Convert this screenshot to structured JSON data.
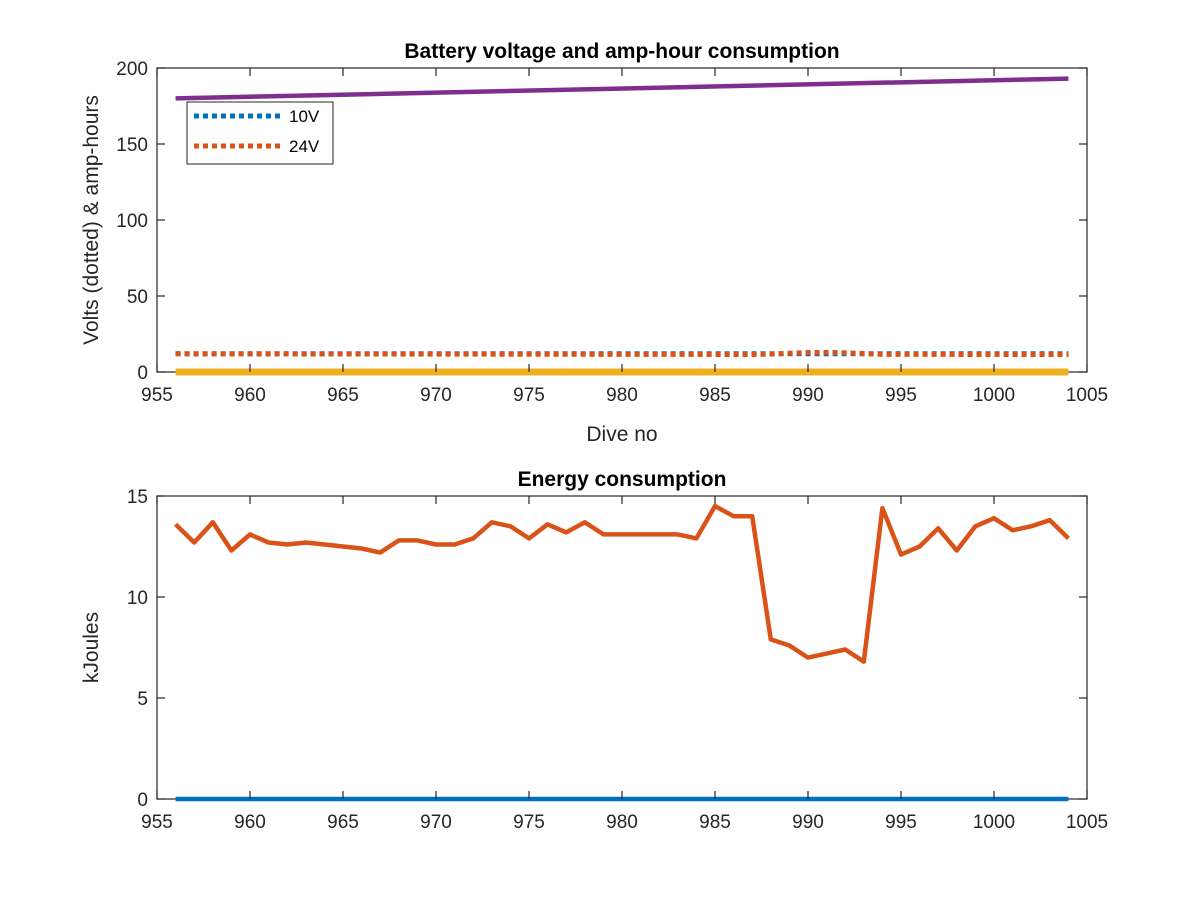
{
  "chart_data": [
    {
      "type": "line",
      "title": "Battery voltage and amp-hour consumption",
      "xlabel": "Dive no",
      "ylabel": "Volts (dotted) & amp-hours",
      "xlim": [
        955,
        1005
      ],
      "ylim": [
        0,
        200
      ],
      "xticks": [
        "955",
        "960",
        "965",
        "970",
        "975",
        "980",
        "985",
        "990",
        "995",
        "1000",
        "1005"
      ],
      "yticks": [
        "0",
        "50",
        "100",
        "150",
        "200"
      ],
      "grid": false,
      "legend": {
        "placement": "top-left",
        "entries": [
          "10V",
          "24V"
        ]
      },
      "series": [
        {
          "name": "10V",
          "style": "dotted",
          "color": "#0072BD",
          "x": [
            956,
            1004
          ],
          "y": [
            12,
            12
          ]
        },
        {
          "name": "24V",
          "style": "dotted",
          "color": "#D95319",
          "x": [
            956,
            987,
            988,
            989,
            990,
            991,
            992,
            993,
            994,
            1004
          ],
          "y": [
            12,
            11.5,
            11.8,
            12.3,
            12.8,
            12.9,
            12.6,
            12.2,
            11.6,
            11.5
          ]
        },
        {
          "style": "solid",
          "color": "#EDB120",
          "x": [
            956,
            1004
          ],
          "y": [
            0,
            0
          ]
        },
        {
          "style": "solid",
          "color": "#7E2F8E",
          "x": [
            956,
            1004
          ],
          "y": [
            180,
            193
          ]
        }
      ]
    },
    {
      "type": "line",
      "title": "Energy consumption",
      "xlabel": "",
      "ylabel": "kJoules",
      "xlim": [
        955,
        1005
      ],
      "ylim": [
        0,
        15
      ],
      "xticks": [
        "955",
        "960",
        "965",
        "970",
        "975",
        "980",
        "985",
        "990",
        "995",
        "1000",
        "1005"
      ],
      "yticks": [
        "0",
        "5",
        "10",
        "15"
      ],
      "grid": false,
      "series": [
        {
          "style": "solid",
          "color": "#0072BD",
          "x": [
            956,
            1004
          ],
          "y": [
            0,
            0
          ]
        },
        {
          "style": "solid",
          "color": "#D95319",
          "x": [
            956,
            957,
            958,
            959,
            960,
            961,
            962,
            963,
            964,
            965,
            966,
            967,
            968,
            969,
            970,
            971,
            972,
            973,
            974,
            975,
            976,
            977,
            978,
            979,
            980,
            981,
            982,
            983,
            984,
            985,
            986,
            987,
            988,
            989,
            990,
            991,
            992,
            993,
            994,
            995,
            996,
            997,
            998,
            999,
            1000,
            1001,
            1002,
            1003,
            1004
          ],
          "y": [
            13.6,
            12.7,
            13.7,
            12.3,
            13.1,
            12.7,
            12.6,
            12.7,
            12.6,
            12.5,
            12.4,
            12.2,
            12.8,
            12.8,
            12.6,
            12.6,
            12.9,
            13.7,
            13.5,
            12.9,
            13.6,
            13.2,
            13.7,
            13.1,
            13.1,
            13.1,
            13.1,
            13.1,
            12.9,
            14.5,
            14.0,
            14.0,
            7.9,
            7.6,
            7.0,
            7.2,
            7.4,
            6.8,
            14.4,
            12.1,
            12.5,
            13.4,
            12.3,
            13.5,
            13.9,
            13.3,
            13.5,
            13.8,
            12.9
          ]
        }
      ]
    }
  ]
}
